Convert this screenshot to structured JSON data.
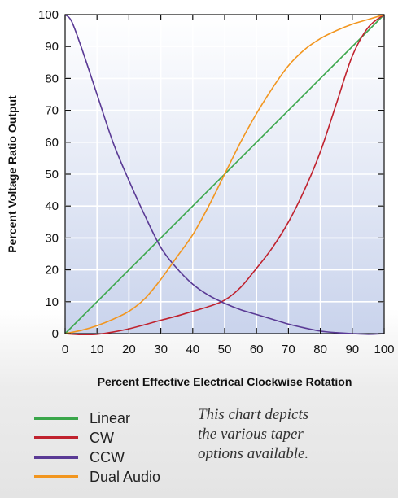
{
  "chart_data": {
    "type": "line",
    "xlabel": "Percent Effective Electrical Clockwise Rotation",
    "ylabel": "Percent Voltage Ratio Output",
    "xlim": [
      0,
      100
    ],
    "ylim": [
      0,
      100
    ],
    "xticks": [
      "0",
      "10",
      "20",
      "30",
      "40",
      "50",
      "60",
      "70",
      "80",
      "90",
      "100"
    ],
    "yticks": [
      "0",
      "10",
      "20",
      "30",
      "40",
      "50",
      "60",
      "70",
      "80",
      "90",
      "100"
    ],
    "grid": true,
    "legend_position": "bottom-left",
    "series": [
      {
        "name": "Linear",
        "color": "#3aa64a",
        "x": [
          0,
          100
        ],
        "y": [
          0,
          100
        ]
      },
      {
        "name": "CW",
        "color": "#c0222e",
        "x": [
          0,
          5,
          10,
          15,
          20,
          25,
          30,
          35,
          40,
          45,
          50,
          55,
          60,
          65,
          70,
          75,
          80,
          85,
          90,
          95,
          100
        ],
        "y": [
          0,
          -0.3,
          -0.2,
          0.5,
          1.5,
          2.8,
          4.2,
          5.5,
          7,
          8.5,
          10.5,
          14.5,
          20.5,
          27,
          35,
          45,
          57,
          72,
          87,
          96,
          100
        ]
      },
      {
        "name": "CCW",
        "color": "#5a3a95",
        "x": [
          0,
          2,
          5,
          10,
          15,
          20,
          25,
          30,
          35,
          40,
          45,
          50,
          55,
          60,
          65,
          70,
          75,
          80,
          85,
          90,
          95,
          100
        ],
        "y": [
          100,
          98,
          90,
          75,
          60,
          48,
          37,
          27,
          20.5,
          15.5,
          12,
          9.5,
          7.5,
          6,
          4.5,
          3,
          1.8,
          0.8,
          0.3,
          0,
          -0.2,
          0
        ]
      },
      {
        "name": "Dual Audio",
        "color": "#f2961f",
        "x": [
          0,
          5,
          10,
          15,
          20,
          25,
          30,
          35,
          40,
          45,
          50,
          55,
          60,
          65,
          70,
          75,
          80,
          85,
          90,
          95,
          100
        ],
        "y": [
          0,
          1,
          2.5,
          4.5,
          7,
          11,
          17,
          24,
          31,
          40,
          50,
          60,
          69,
          77,
          84,
          89,
          92.5,
          95,
          97,
          98.5,
          100
        ]
      }
    ]
  },
  "note": {
    "lines": [
      "This chart depicts",
      "the various taper",
      "options available."
    ]
  }
}
